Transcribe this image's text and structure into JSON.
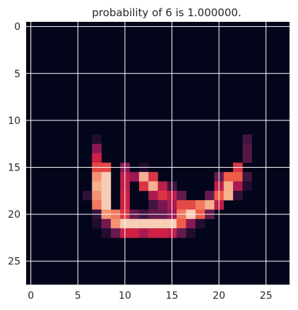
{
  "chart_data": {
    "type": "heatmap",
    "title": "probability of  6 is  1.000000.",
    "xlabel": "",
    "ylabel": "",
    "grid": true,
    "colormap": "rocket",
    "background_color": "#03051a",
    "grid_color": "#ffffff",
    "shape": [
      28,
      28
    ],
    "x_ticks": [
      0,
      5,
      10,
      15,
      20,
      25
    ],
    "y_ticks": [
      0,
      5,
      10,
      15,
      20,
      25
    ],
    "x_tick_labels": [
      "0",
      "5",
      "10",
      "15",
      "20",
      "25"
    ],
    "y_tick_labels": [
      "0",
      "5",
      "10",
      "15",
      "20",
      "25"
    ],
    "xlim": [
      -0.5,
      27.5
    ],
    "ylim": [
      27.5,
      -0.5
    ],
    "value_range": [
      0,
      1
    ],
    "nonzero_pixels": [
      [
        12,
        7,
        0.1
      ],
      [
        12,
        23,
        0.2
      ],
      [
        13,
        7,
        0.4
      ],
      [
        13,
        23,
        0.25
      ],
      [
        14,
        7,
        0.6
      ],
      [
        14,
        23,
        0.25
      ],
      [
        15,
        7,
        0.7
      ],
      [
        15,
        8,
        0.7
      ],
      [
        15,
        10,
        0.4
      ],
      [
        15,
        12,
        0.1
      ],
      [
        15,
        22,
        0.65
      ],
      [
        16,
        7,
        0.85
      ],
      [
        16,
        8,
        0.95
      ],
      [
        16,
        10,
        0.55
      ],
      [
        16,
        11,
        0.45
      ],
      [
        16,
        12,
        0.9
      ],
      [
        16,
        13,
        0.65
      ],
      [
        16,
        20,
        0.3
      ],
      [
        16,
        21,
        0.75
      ],
      [
        16,
        22,
        0.75
      ],
      [
        16,
        23,
        0.2
      ],
      [
        17,
        7,
        0.9
      ],
      [
        17,
        8,
        0.95
      ],
      [
        17,
        10,
        0.55
      ],
      [
        17,
        12,
        0.65
      ],
      [
        17,
        13,
        0.9
      ],
      [
        17,
        14,
        0.55
      ],
      [
        17,
        15,
        0.2
      ],
      [
        17,
        20,
        0.55
      ],
      [
        17,
        21,
        0.9
      ],
      [
        17,
        22,
        0.5
      ],
      [
        17,
        23,
        0.1
      ],
      [
        18,
        6,
        0.15
      ],
      [
        18,
        7,
        0.85
      ],
      [
        18,
        8,
        0.95
      ],
      [
        18,
        10,
        0.6
      ],
      [
        18,
        13,
        0.5
      ],
      [
        18,
        14,
        0.65
      ],
      [
        18,
        15,
        0.55
      ],
      [
        18,
        16,
        0.3
      ],
      [
        18,
        19,
        0.3
      ],
      [
        18,
        20,
        0.75
      ],
      [
        18,
        21,
        0.9
      ],
      [
        18,
        22,
        0.15
      ],
      [
        19,
        7,
        0.8
      ],
      [
        19,
        8,
        0.95
      ],
      [
        19,
        10,
        0.6
      ],
      [
        19,
        13,
        0.2
      ],
      [
        19,
        14,
        0.35
      ],
      [
        19,
        15,
        0.5
      ],
      [
        19,
        16,
        0.7
      ],
      [
        19,
        17,
        0.7
      ],
      [
        19,
        18,
        0.8
      ],
      [
        19,
        19,
        0.9
      ],
      [
        19,
        20,
        0.55
      ],
      [
        20,
        7,
        0.15
      ],
      [
        20,
        8,
        0.85
      ],
      [
        20,
        9,
        0.8
      ],
      [
        20,
        10,
        0.65
      ],
      [
        20,
        11,
        0.3
      ],
      [
        20,
        12,
        0.2
      ],
      [
        20,
        13,
        0.3
      ],
      [
        20,
        14,
        0.3
      ],
      [
        20,
        15,
        0.45
      ],
      [
        20,
        16,
        0.8
      ],
      [
        20,
        17,
        0.95
      ],
      [
        20,
        18,
        0.75
      ],
      [
        20,
        19,
        0.3
      ],
      [
        21,
        7,
        0.1
      ],
      [
        21,
        8,
        0.35
      ],
      [
        21,
        9,
        0.85
      ],
      [
        21,
        10,
        0.95
      ],
      [
        21,
        11,
        0.95
      ],
      [
        21,
        12,
        0.95
      ],
      [
        21,
        13,
        0.95
      ],
      [
        21,
        14,
        0.95
      ],
      [
        21,
        15,
        0.95
      ],
      [
        21,
        16,
        0.75
      ],
      [
        21,
        17,
        0.4
      ],
      [
        21,
        18,
        0.1
      ],
      [
        22,
        8,
        0.1
      ],
      [
        22,
        9,
        0.3
      ],
      [
        22,
        10,
        0.6
      ],
      [
        22,
        11,
        0.6
      ],
      [
        22,
        12,
        0.5
      ],
      [
        22,
        13,
        0.6
      ],
      [
        22,
        14,
        0.6
      ],
      [
        22,
        15,
        0.55
      ],
      [
        22,
        16,
        0.3
      ],
      [
        22,
        17,
        0.1
      ]
    ]
  }
}
